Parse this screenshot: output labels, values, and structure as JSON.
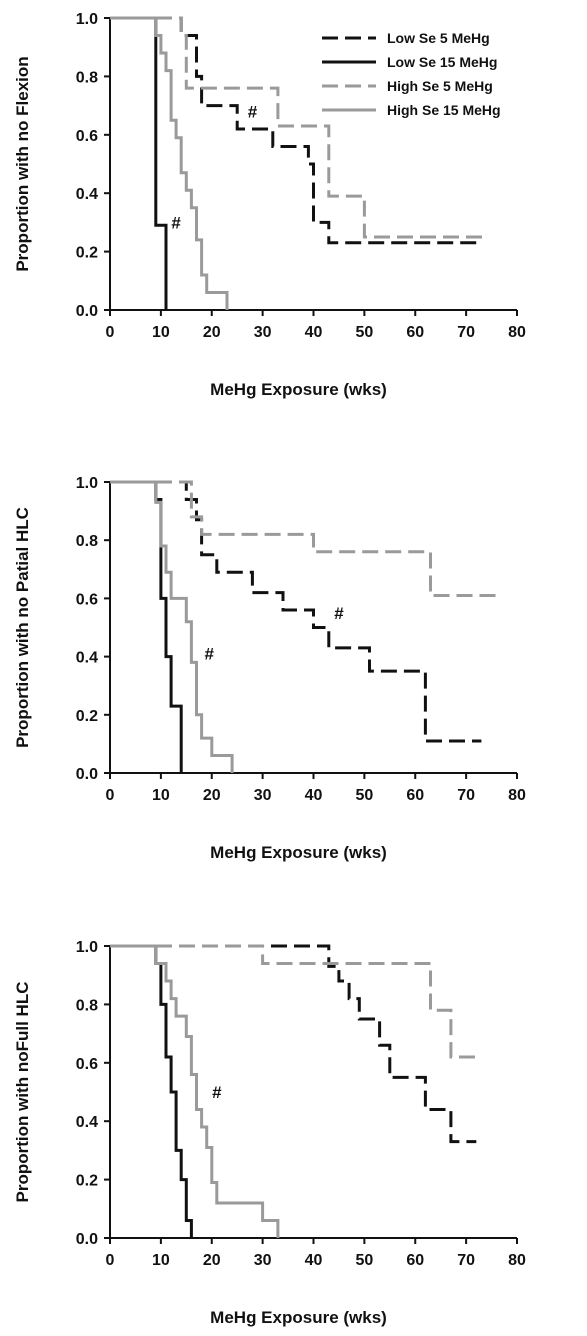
{
  "chart_data": [
    {
      "type": "line",
      "step": true,
      "xlabel": "MeHg Exposure (wks)",
      "ylabel": "Proportion with no Flexion",
      "xlim": [
        0,
        80
      ],
      "ylim": [
        0,
        1
      ],
      "xticks": [
        0,
        10,
        20,
        30,
        40,
        50,
        60,
        70,
        80
      ],
      "yticks": [
        "0.0",
        "0.2",
        "0.4",
        "0.6",
        "0.8",
        "1.0"
      ],
      "legend": {
        "position": "top-right",
        "entries": [
          {
            "label": "Low Se 5 MeHg",
            "color": "#111111",
            "dashed": true
          },
          {
            "label": "Low Se 15 MeHg",
            "color": "#111111",
            "dashed": false
          },
          {
            "label": "High Se 5 MeHg",
            "color": "#9a9a9a",
            "dashed": true
          },
          {
            "label": "High Se 15 MeHg",
            "color": "#9a9a9a",
            "dashed": false
          }
        ]
      },
      "annotations": [
        {
          "text": "#",
          "x": 13,
          "y": 0.3
        },
        {
          "text": "#",
          "x": 28,
          "y": 0.68
        }
      ],
      "series": [
        {
          "name": "Low Se 5 MeHg",
          "color": "#111111",
          "dashed": true,
          "points": [
            [
              0,
              1
            ],
            [
              14,
              1
            ],
            [
              14,
              0.94
            ],
            [
              17,
              0.94
            ],
            [
              17,
              0.8
            ],
            [
              18,
              0.8
            ],
            [
              18,
              0.7
            ],
            [
              25,
              0.7
            ],
            [
              25,
              0.62
            ],
            [
              32,
              0.62
            ],
            [
              32,
              0.56
            ],
            [
              39,
              0.56
            ],
            [
              39,
              0.5
            ],
            [
              40,
              0.5
            ],
            [
              40,
              0.3
            ],
            [
              43,
              0.3
            ],
            [
              43,
              0.23
            ],
            [
              73,
              0.23
            ]
          ]
        },
        {
          "name": "Low Se 15 MeHg",
          "color": "#111111",
          "dashed": false,
          "points": [
            [
              0,
              1
            ],
            [
              9,
              1
            ],
            [
              9,
              0.29
            ],
            [
              11,
              0.29
            ],
            [
              11,
              0
            ]
          ]
        },
        {
          "name": "High Se 5 MeHg",
          "color": "#9a9a9a",
          "dashed": true,
          "points": [
            [
              0,
              1
            ],
            [
              14,
              1
            ],
            [
              14,
              0.94
            ],
            [
              15,
              0.94
            ],
            [
              15,
              0.76
            ],
            [
              33,
              0.76
            ],
            [
              33,
              0.63
            ],
            [
              43,
              0.63
            ],
            [
              43,
              0.39
            ],
            [
              50,
              0.39
            ],
            [
              50,
              0.25
            ],
            [
              74,
              0.25
            ]
          ]
        },
        {
          "name": "High Se 15 MeHg",
          "color": "#9a9a9a",
          "dashed": false,
          "points": [
            [
              0,
              1
            ],
            [
              9,
              1
            ],
            [
              9,
              0.94
            ],
            [
              10,
              0.94
            ],
            [
              10,
              0.88
            ],
            [
              11,
              0.88
            ],
            [
              11,
              0.82
            ],
            [
              12,
              0.82
            ],
            [
              12,
              0.65
            ],
            [
              13,
              0.65
            ],
            [
              13,
              0.59
            ],
            [
              14,
              0.59
            ],
            [
              14,
              0.47
            ],
            [
              15,
              0.47
            ],
            [
              15,
              0.41
            ],
            [
              16,
              0.41
            ],
            [
              16,
              0.35
            ],
            [
              17,
              0.35
            ],
            [
              17,
              0.24
            ],
            [
              18,
              0.24
            ],
            [
              18,
              0.12
            ],
            [
              19,
              0.12
            ],
            [
              19,
              0.06
            ],
            [
              23,
              0.06
            ],
            [
              23,
              0
            ]
          ]
        }
      ]
    },
    {
      "type": "line",
      "step": true,
      "xlabel": "MeHg Exposure (wks)",
      "ylabel": "Proportion with no Patial HLC",
      "xlim": [
        0,
        80
      ],
      "ylim": [
        0,
        1
      ],
      "xticks": [
        0,
        10,
        20,
        30,
        40,
        50,
        60,
        70,
        80
      ],
      "yticks": [
        "0.0",
        "0.2",
        "0.4",
        "0.6",
        "0.8",
        "1.0"
      ],
      "annotations": [
        {
          "text": "#",
          "x": 19.5,
          "y": 0.41
        },
        {
          "text": "#",
          "x": 45,
          "y": 0.55
        }
      ],
      "series": [
        {
          "name": "Low Se 5 MeHg",
          "color": "#111111",
          "dashed": true,
          "points": [
            [
              0,
              1
            ],
            [
              15,
              1
            ],
            [
              15,
              0.94
            ],
            [
              17,
              0.94
            ],
            [
              17,
              0.87
            ],
            [
              18,
              0.87
            ],
            [
              18,
              0.75
            ],
            [
              21,
              0.75
            ],
            [
              21,
              0.69
            ],
            [
              28,
              0.69
            ],
            [
              28,
              0.62
            ],
            [
              34,
              0.62
            ],
            [
              34,
              0.56
            ],
            [
              40,
              0.56
            ],
            [
              40,
              0.5
            ],
            [
              43,
              0.5
            ],
            [
              43,
              0.43
            ],
            [
              51,
              0.43
            ],
            [
              51,
              0.35
            ],
            [
              62,
              0.35
            ],
            [
              62,
              0.11
            ],
            [
              73,
              0.11
            ]
          ]
        },
        {
          "name": "Low Se 15 MeHg",
          "color": "#111111",
          "dashed": false,
          "points": [
            [
              0,
              1
            ],
            [
              9,
              1
            ],
            [
              9,
              0.94
            ],
            [
              10,
              0.94
            ],
            [
              10,
              0.6
            ],
            [
              11,
              0.6
            ],
            [
              11,
              0.4
            ],
            [
              12,
              0.4
            ],
            [
              12,
              0.23
            ],
            [
              14,
              0.23
            ],
            [
              14,
              0
            ]
          ]
        },
        {
          "name": "High Se 5 MeHg",
          "color": "#9a9a9a",
          "dashed": true,
          "points": [
            [
              0,
              1
            ],
            [
              16,
              1
            ],
            [
              16,
              0.88
            ],
            [
              18,
              0.88
            ],
            [
              18,
              0.82
            ],
            [
              40,
              0.82
            ],
            [
              40,
              0.76
            ],
            [
              63,
              0.76
            ],
            [
              63,
              0.61
            ],
            [
              76,
              0.61
            ]
          ]
        },
        {
          "name": "High Se 15 MeHg",
          "color": "#9a9a9a",
          "dashed": false,
          "points": [
            [
              0,
              1
            ],
            [
              9,
              1
            ],
            [
              9,
              0.93
            ],
            [
              10,
              0.93
            ],
            [
              10,
              0.78
            ],
            [
              11,
              0.78
            ],
            [
              11,
              0.69
            ],
            [
              12,
              0.69
            ],
            [
              12,
              0.6
            ],
            [
              13,
              0.6
            ],
            [
              13,
              0.6
            ],
            [
              15,
              0.6
            ],
            [
              15,
              0.52
            ],
            [
              16,
              0.52
            ],
            [
              16,
              0.38
            ],
            [
              17,
              0.38
            ],
            [
              17,
              0.2
            ],
            [
              18,
              0.2
            ],
            [
              18,
              0.12
            ],
            [
              20,
              0.12
            ],
            [
              20,
              0.06
            ],
            [
              24,
              0.06
            ],
            [
              24,
              0
            ]
          ]
        }
      ]
    },
    {
      "type": "line",
      "step": true,
      "xlabel": "MeHg Exposure (wks)",
      "ylabel": "Proportion with noFull HLC",
      "xlim": [
        0,
        80
      ],
      "ylim": [
        0,
        1
      ],
      "xticks": [
        0,
        10,
        20,
        30,
        40,
        50,
        60,
        70,
        80
      ],
      "yticks": [
        "0.0",
        "0.2",
        "0.4",
        "0.6",
        "0.8",
        "1.0"
      ],
      "annotations": [
        {
          "text": "#",
          "x": 21,
          "y": 0.5
        }
      ],
      "series": [
        {
          "name": "Low Se 5 MeHg",
          "color": "#111111",
          "dashed": true,
          "points": [
            [
              0,
              1
            ],
            [
              43,
              1
            ],
            [
              43,
              0.93
            ],
            [
              45,
              0.93
            ],
            [
              45,
              0.88
            ],
            [
              47,
              0.88
            ],
            [
              47,
              0.82
            ],
            [
              49,
              0.82
            ],
            [
              49,
              0.75
            ],
            [
              53,
              0.75
            ],
            [
              53,
              0.66
            ],
            [
              55,
              0.66
            ],
            [
              55,
              0.55
            ],
            [
              62,
              0.55
            ],
            [
              62,
              0.44
            ],
            [
              67,
              0.44
            ],
            [
              67,
              0.33
            ],
            [
              72,
              0.33
            ]
          ]
        },
        {
          "name": "Low Se 15 MeHg",
          "color": "#111111",
          "dashed": false,
          "points": [
            [
              0,
              1
            ],
            [
              9,
              1
            ],
            [
              9,
              0.94
            ],
            [
              10,
              0.94
            ],
            [
              10,
              0.8
            ],
            [
              11,
              0.8
            ],
            [
              11,
              0.62
            ],
            [
              12,
              0.62
            ],
            [
              12,
              0.5
            ],
            [
              13,
              0.5
            ],
            [
              13,
              0.3
            ],
            [
              14,
              0.3
            ],
            [
              14,
              0.2
            ],
            [
              15,
              0.2
            ],
            [
              15,
              0.06
            ],
            [
              16,
              0.06
            ],
            [
              16,
              0
            ]
          ]
        },
        {
          "name": "High Se 5 MeHg",
          "color": "#9a9a9a",
          "dashed": true,
          "points": [
            [
              0,
              1
            ],
            [
              30,
              1
            ],
            [
              30,
              0.94
            ],
            [
              63,
              0.94
            ],
            [
              63,
              0.78
            ],
            [
              67,
              0.78
            ],
            [
              67,
              0.62
            ],
            [
              73,
              0.62
            ]
          ]
        },
        {
          "name": "High Se 15 MeHg",
          "color": "#9a9a9a",
          "dashed": false,
          "points": [
            [
              0,
              1
            ],
            [
              9,
              1
            ],
            [
              9,
              0.94
            ],
            [
              11,
              0.94
            ],
            [
              11,
              0.88
            ],
            [
              12,
              0.88
            ],
            [
              12,
              0.82
            ],
            [
              13,
              0.82
            ],
            [
              13,
              0.76
            ],
            [
              15,
              0.76
            ],
            [
              15,
              0.69
            ],
            [
              16,
              0.69
            ],
            [
              16,
              0.56
            ],
            [
              17,
              0.56
            ],
            [
              17,
              0.44
            ],
            [
              18,
              0.44
            ],
            [
              18,
              0.38
            ],
            [
              19,
              0.38
            ],
            [
              19,
              0.31
            ],
            [
              20,
              0.31
            ],
            [
              20,
              0.19
            ],
            [
              21,
              0.19
            ],
            [
              21,
              0.12
            ],
            [
              30,
              0.12
            ],
            [
              30,
              0.06
            ],
            [
              33,
              0.06
            ],
            [
              33,
              0
            ]
          ]
        }
      ]
    }
  ]
}
